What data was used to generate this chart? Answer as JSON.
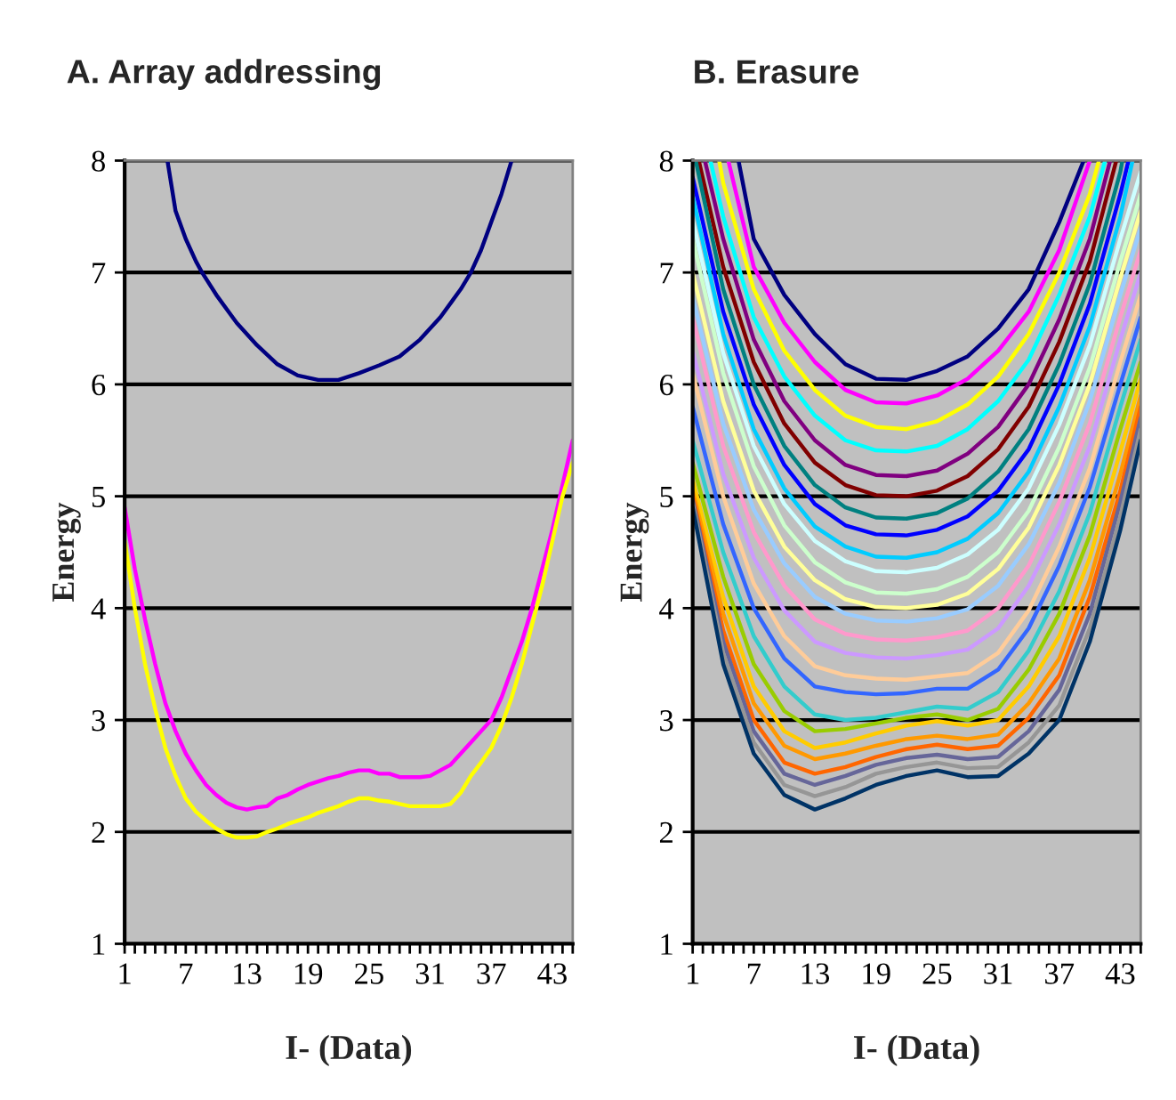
{
  "chart_data": [
    {
      "type": "line",
      "title": "A. Array addressing",
      "xlabel": "I- (Data)",
      "ylabel": "Energy",
      "xlim": [
        1,
        45
      ],
      "ylim": [
        1,
        8
      ],
      "yticks": [
        1,
        2,
        3,
        4,
        5,
        6,
        7,
        8
      ],
      "xticks": [
        1,
        {
          "value": 2,
          "label": null
        },
        {
          "value": 3,
          "label": null
        },
        {
          "value": 4,
          "label": null
        },
        {
          "value": 5,
          "label": null
        },
        {
          "value": 6,
          "label": null
        },
        7,
        {
          "value": 8,
          "label": null
        },
        {
          "value": 9,
          "label": null
        },
        {
          "value": 10,
          "label": null
        },
        {
          "value": 11,
          "label": null
        },
        {
          "value": 12,
          "label": null
        },
        13,
        {
          "value": 14,
          "label": null
        },
        {
          "value": 15,
          "label": null
        },
        {
          "value": 16,
          "label": null
        },
        {
          "value": 17,
          "label": null
        },
        {
          "value": 18,
          "label": null
        },
        19,
        {
          "value": 20,
          "label": null
        },
        {
          "value": 21,
          "label": null
        },
        {
          "value": 22,
          "label": null
        },
        {
          "value": 23,
          "label": null
        },
        {
          "value": 24,
          "label": null
        },
        25,
        {
          "value": 26,
          "label": null
        },
        {
          "value": 27,
          "label": null
        },
        {
          "value": 28,
          "label": null
        },
        {
          "value": 29,
          "label": null
        },
        {
          "value": 30,
          "label": null
        },
        31,
        {
          "value": 32,
          "label": null
        },
        {
          "value": 33,
          "label": null
        },
        {
          "value": 34,
          "label": null
        },
        {
          "value": 35,
          "label": null
        },
        {
          "value": 36,
          "label": null
        },
        37,
        {
          "value": 38,
          "label": null
        },
        {
          "value": 39,
          "label": null
        },
        {
          "value": 40,
          "label": null
        },
        {
          "value": 41,
          "label": null
        },
        {
          "value": 42,
          "label": null
        },
        43,
        {
          "value": 44,
          "label": null
        },
        {
          "value": 45,
          "label": null
        }
      ],
      "grid": "y",
      "series": [
        {
          "color": "#000080",
          "x": [
            5.2,
            6,
            7,
            8,
            8.6,
            10,
            12,
            14,
            16,
            18,
            20,
            22,
            24,
            26,
            28,
            30,
            32,
            34,
            35,
            36,
            37,
            38,
            39
          ],
          "values": [
            8,
            7.55,
            7.3,
            7.1,
            7,
            6.8,
            6.55,
            6.35,
            6.18,
            6.08,
            6.04,
            6.04,
            6.1,
            6.17,
            6.25,
            6.4,
            6.6,
            6.85,
            7,
            7.2,
            7.45,
            7.7,
            8
          ]
        },
        {
          "color": "#ff00ff",
          "x": [
            1,
            2,
            3,
            4,
            5,
            6,
            7,
            8,
            9,
            10,
            11,
            12,
            13,
            14,
            15,
            16,
            17,
            18,
            19,
            20,
            21,
            22,
            23,
            24,
            25,
            26,
            27,
            28,
            29,
            30,
            31,
            32,
            33,
            34,
            35,
            36,
            37,
            38,
            39,
            40,
            41,
            42,
            43,
            44,
            45
          ],
          "values": [
            4.9,
            4.35,
            3.9,
            3.5,
            3.15,
            2.9,
            2.7,
            2.55,
            2.42,
            2.33,
            2.26,
            2.22,
            2.2,
            2.22,
            2.23,
            2.3,
            2.33,
            2.38,
            2.42,
            2.45,
            2.48,
            2.5,
            2.53,
            2.55,
            2.55,
            2.52,
            2.52,
            2.49,
            2.49,
            2.49,
            2.5,
            2.55,
            2.6,
            2.7,
            2.8,
            2.9,
            3.0,
            3.2,
            3.45,
            3.7,
            4.0,
            4.35,
            4.7,
            5.1,
            5.5
          ]
        },
        {
          "color": "#ffff00",
          "x": [
            1,
            2,
            3,
            4,
            5,
            6,
            7,
            8,
            9,
            10,
            11,
            12,
            13,
            14,
            15,
            16,
            17,
            18,
            19,
            20,
            21,
            22,
            23,
            24,
            25,
            26,
            27,
            28,
            29,
            30,
            31,
            32,
            33,
            34,
            35,
            36,
            37,
            38,
            39,
            40,
            41,
            42,
            43,
            44,
            45
          ],
          "values": [
            4.6,
            4.0,
            3.5,
            3.1,
            2.75,
            2.5,
            2.3,
            2.18,
            2.1,
            2.03,
            1.98,
            1.95,
            1.95,
            1.96,
            2.0,
            2.03,
            2.07,
            2.1,
            2.13,
            2.17,
            2.2,
            2.23,
            2.27,
            2.3,
            2.3,
            2.28,
            2.27,
            2.25,
            2.23,
            2.23,
            2.23,
            2.23,
            2.25,
            2.35,
            2.5,
            2.62,
            2.75,
            2.95,
            3.2,
            3.5,
            3.85,
            4.2,
            4.6,
            5.0,
            5.3
          ]
        }
      ]
    },
    {
      "type": "line",
      "title": "B. Erasure",
      "xlabel": "I- (Data)",
      "ylabel": "Energy",
      "xlim": [
        1,
        45
      ],
      "ylim": [
        1,
        8
      ],
      "yticks": [
        1,
        2,
        3,
        4,
        5,
        6,
        7,
        8
      ],
      "xticks": [
        1,
        {
          "value": 2,
          "label": null
        },
        {
          "value": 3,
          "label": null
        },
        {
          "value": 4,
          "label": null
        },
        {
          "value": 5,
          "label": null
        },
        {
          "value": 6,
          "label": null
        },
        7,
        {
          "value": 8,
          "label": null
        },
        {
          "value": 9,
          "label": null
        },
        {
          "value": 10,
          "label": null
        },
        {
          "value": 11,
          "label": null
        },
        {
          "value": 12,
          "label": null
        },
        13,
        {
          "value": 14,
          "label": null
        },
        {
          "value": 15,
          "label": null
        },
        {
          "value": 16,
          "label": null
        },
        {
          "value": 17,
          "label": null
        },
        {
          "value": 18,
          "label": null
        },
        19,
        {
          "value": 20,
          "label": null
        },
        {
          "value": 21,
          "label": null
        },
        {
          "value": 22,
          "label": null
        },
        {
          "value": 23,
          "label": null
        },
        {
          "value": 24,
          "label": null
        },
        25,
        {
          "value": 26,
          "label": null
        },
        {
          "value": 27,
          "label": null
        },
        {
          "value": 28,
          "label": null
        },
        {
          "value": 29,
          "label": null
        },
        {
          "value": 30,
          "label": null
        },
        31,
        {
          "value": 32,
          "label": null
        },
        {
          "value": 33,
          "label": null
        },
        {
          "value": 34,
          "label": null
        },
        {
          "value": 35,
          "label": null
        },
        {
          "value": 36,
          "label": null
        },
        37,
        {
          "value": 38,
          "label": null
        },
        {
          "value": 39,
          "label": null
        },
        {
          "value": 40,
          "label": null
        },
        {
          "value": 41,
          "label": null
        },
        {
          "value": 42,
          "label": null
        },
        43,
        {
          "value": 44,
          "label": null
        },
        {
          "value": 45,
          "label": null
        }
      ],
      "grid": "y",
      "series": [
        {
          "color": "#000080",
          "x": [
            5.5,
            7,
            10,
            13,
            16,
            19,
            22,
            25,
            28,
            31,
            34,
            37,
            39.4
          ],
          "values": [
            8,
            7.3,
            6.8,
            6.45,
            6.18,
            6.05,
            6.04,
            6.12,
            6.25,
            6.5,
            6.85,
            7.45,
            8
          ]
        },
        {
          "color": "#ff00ff",
          "x": [
            4.5,
            7,
            10,
            13,
            16,
            19,
            22,
            25,
            28,
            31,
            34,
            37,
            40
          ],
          "values": [
            8,
            7.05,
            6.55,
            6.2,
            5.95,
            5.84,
            5.83,
            5.9,
            6.05,
            6.3,
            6.65,
            7.2,
            8
          ]
        },
        {
          "color": "#ffff00",
          "x": [
            3.6,
            4,
            7,
            10,
            13,
            16,
            19,
            22,
            25,
            28,
            31,
            34,
            37,
            40,
            40.9
          ],
          "values": [
            8,
            7.8,
            6.85,
            6.3,
            5.95,
            5.72,
            5.62,
            5.6,
            5.67,
            5.82,
            6.07,
            6.45,
            7.0,
            7.7,
            8
          ]
        },
        {
          "color": "#00ffff",
          "x": [
            2.75,
            4,
            7,
            10,
            13,
            16,
            19,
            22,
            25,
            28,
            31,
            34,
            37,
            40,
            41.5
          ],
          "values": [
            8,
            7.5,
            6.6,
            6.07,
            5.72,
            5.5,
            5.41,
            5.4,
            5.45,
            5.6,
            5.85,
            6.22,
            6.8,
            7.5,
            8
          ]
        },
        {
          "color": "#800080",
          "x": [
            2.2,
            4,
            7,
            10,
            13,
            16,
            19,
            22,
            25,
            28,
            31,
            34,
            37,
            40,
            42
          ],
          "values": [
            8,
            7.3,
            6.4,
            5.85,
            5.5,
            5.28,
            5.19,
            5.18,
            5.23,
            5.38,
            5.62,
            6.0,
            6.58,
            7.3,
            8
          ]
        },
        {
          "color": "#800000",
          "x": [
            1.6,
            4,
            7,
            10,
            13,
            16,
            19,
            22,
            25,
            28,
            31,
            34,
            37,
            40,
            42.6
          ],
          "values": [
            8,
            7.05,
            6.2,
            5.65,
            5.3,
            5.1,
            5.01,
            5.0,
            5.05,
            5.18,
            5.42,
            5.8,
            6.38,
            7.1,
            8
          ]
        },
        {
          "color": "#008080",
          "x": [
            1.3,
            4,
            7,
            10,
            13,
            16,
            19,
            22,
            25,
            28,
            31,
            34,
            37,
            40,
            43,
            43.2
          ],
          "values": [
            8,
            6.85,
            6.0,
            5.45,
            5.1,
            4.9,
            4.81,
            4.8,
            4.85,
            4.98,
            5.22,
            5.6,
            6.18,
            6.9,
            7.9,
            8
          ]
        },
        {
          "color": "#0000ff",
          "x": [
            1,
            4,
            7,
            10,
            13,
            16,
            19,
            22,
            25,
            28,
            31,
            34,
            37,
            40,
            43,
            43.8
          ],
          "values": [
            7.85,
            6.65,
            5.82,
            5.28,
            4.93,
            4.74,
            4.66,
            4.65,
            4.7,
            4.82,
            5.05,
            5.42,
            6.0,
            6.72,
            7.7,
            8
          ]
        },
        {
          "color": "#00ccff",
          "x": [
            1,
            4,
            7,
            10,
            13,
            16,
            19,
            22,
            25,
            28,
            31,
            34,
            37,
            40,
            43,
            44.2
          ],
          "values": [
            7.68,
            6.45,
            5.6,
            5.07,
            4.73,
            4.55,
            4.46,
            4.45,
            4.5,
            4.62,
            4.85,
            5.22,
            5.8,
            6.52,
            7.5,
            8
          ]
        },
        {
          "color": "#ccffff",
          "x": [
            1,
            4,
            7,
            10,
            13,
            16,
            19,
            22,
            25,
            28,
            31,
            34,
            37,
            40,
            43,
            45
          ],
          "values": [
            7.47,
            6.28,
            5.45,
            4.93,
            4.6,
            4.42,
            4.33,
            4.32,
            4.36,
            4.48,
            4.7,
            5.07,
            5.64,
            6.35,
            7.3,
            7.9
          ]
        },
        {
          "color": "#ccffcc",
          "x": [
            1,
            4,
            7,
            10,
            13,
            16,
            19,
            22,
            25,
            28,
            31,
            34,
            37,
            40,
            43,
            45
          ],
          "values": [
            7.3,
            6.1,
            5.27,
            4.74,
            4.41,
            4.23,
            4.14,
            4.13,
            4.17,
            4.28,
            4.5,
            4.87,
            5.44,
            6.15,
            7.1,
            7.7
          ]
        },
        {
          "color": "#ffff99",
          "x": [
            1,
            4,
            7,
            10,
            13,
            16,
            19,
            22,
            25,
            28,
            31,
            34,
            37,
            40,
            43,
            45
          ],
          "values": [
            7.0,
            5.85,
            5.05,
            4.55,
            4.25,
            4.08,
            4.01,
            4.0,
            4.03,
            4.13,
            4.35,
            4.72,
            5.28,
            6.0,
            6.95,
            7.55
          ]
        },
        {
          "color": "#99ccff",
          "x": [
            1,
            4,
            7,
            10,
            13,
            16,
            19,
            22,
            25,
            28,
            31,
            34,
            37,
            40,
            43,
            45
          ],
          "values": [
            6.78,
            5.65,
            4.88,
            4.4,
            4.1,
            3.95,
            3.89,
            3.88,
            3.91,
            3.99,
            4.2,
            4.57,
            5.12,
            5.85,
            6.8,
            7.4
          ]
        },
        {
          "color": "#ff99cc",
          "x": [
            1,
            4,
            7,
            10,
            13,
            16,
            19,
            22,
            25,
            28,
            31,
            34,
            37,
            40,
            43,
            45
          ],
          "values": [
            6.6,
            5.45,
            4.68,
            4.2,
            3.9,
            3.77,
            3.72,
            3.71,
            3.74,
            3.8,
            4.0,
            4.38,
            4.95,
            5.65,
            6.6,
            7.2
          ]
        },
        {
          "color": "#cc99ff",
          "x": [
            1,
            4,
            7,
            10,
            13,
            16,
            19,
            22,
            25,
            28,
            31,
            34,
            37,
            40,
            43,
            45
          ],
          "values": [
            6.3,
            5.2,
            4.45,
            3.98,
            3.7,
            3.6,
            3.56,
            3.55,
            3.58,
            3.63,
            3.82,
            4.2,
            4.75,
            5.45,
            6.4,
            7.0
          ]
        },
        {
          "color": "#ffcc99",
          "x": [
            1,
            4,
            7,
            10,
            13,
            16,
            19,
            22,
            25,
            28,
            31,
            34,
            37,
            40,
            43,
            45
          ],
          "values": [
            6.1,
            5.0,
            4.22,
            3.75,
            3.48,
            3.4,
            3.37,
            3.36,
            3.39,
            3.42,
            3.6,
            3.98,
            4.55,
            5.25,
            6.2,
            6.8
          ]
        },
        {
          "color": "#3366ff",
          "x": [
            1,
            4,
            7,
            10,
            13,
            16,
            19,
            22,
            25,
            28,
            31,
            34,
            37,
            40,
            43,
            45
          ],
          "values": [
            5.8,
            4.75,
            4.0,
            3.55,
            3.3,
            3.25,
            3.23,
            3.24,
            3.28,
            3.28,
            3.45,
            3.82,
            4.38,
            5.08,
            6.0,
            6.6
          ]
        },
        {
          "color": "#33cccc",
          "x": [
            1,
            4,
            7,
            10,
            13,
            16,
            19,
            22,
            25,
            28,
            31,
            34,
            37,
            40,
            43,
            45
          ],
          "values": [
            5.5,
            4.5,
            3.75,
            3.3,
            3.05,
            3.0,
            3.02,
            3.07,
            3.12,
            3.1,
            3.25,
            3.62,
            4.15,
            4.85,
            5.8,
            6.4
          ]
        },
        {
          "color": "#99cc00",
          "x": [
            1,
            4,
            7,
            10,
            13,
            16,
            19,
            22,
            25,
            28,
            31,
            34,
            37,
            40,
            43,
            45
          ],
          "values": [
            5.3,
            4.28,
            3.5,
            3.08,
            2.9,
            2.92,
            2.97,
            3.02,
            3.05,
            3.0,
            3.1,
            3.45,
            3.95,
            4.65,
            5.6,
            6.2
          ]
        },
        {
          "color": "#ffcc00",
          "x": [
            1,
            4,
            7,
            10,
            13,
            16,
            19,
            22,
            25,
            28,
            31,
            34,
            37,
            40,
            43,
            45
          ],
          "values": [
            5.15,
            4.1,
            3.3,
            2.9,
            2.75,
            2.8,
            2.88,
            2.95,
            2.99,
            2.95,
            3.0,
            3.3,
            3.75,
            4.45,
            5.4,
            6.05
          ]
        },
        {
          "color": "#ff9900",
          "x": [
            1,
            4,
            7,
            10,
            13,
            16,
            19,
            22,
            25,
            28,
            31,
            34,
            37,
            40,
            43,
            45
          ],
          "values": [
            5.05,
            3.95,
            3.15,
            2.77,
            2.65,
            2.7,
            2.77,
            2.83,
            2.86,
            2.83,
            2.87,
            3.15,
            3.55,
            4.25,
            5.2,
            5.9
          ]
        },
        {
          "color": "#ff6600",
          "x": [
            1,
            4,
            7,
            10,
            13,
            16,
            19,
            22,
            25,
            28,
            31,
            34,
            37,
            40,
            43,
            45
          ],
          "values": [
            5.0,
            3.8,
            3.0,
            2.62,
            2.52,
            2.58,
            2.67,
            2.74,
            2.78,
            2.74,
            2.77,
            3.02,
            3.4,
            4.1,
            5.05,
            5.8
          ]
        },
        {
          "color": "#666699",
          "x": [
            1,
            4,
            7,
            10,
            13,
            16,
            19,
            22,
            25,
            28,
            31,
            34,
            37,
            40,
            43,
            45
          ],
          "values": [
            4.97,
            3.7,
            2.9,
            2.52,
            2.42,
            2.5,
            2.6,
            2.66,
            2.69,
            2.65,
            2.67,
            2.9,
            3.27,
            3.95,
            4.95,
            5.7
          ]
        },
        {
          "color": "#969696",
          "x": [
            1,
            4,
            7,
            10,
            13,
            16,
            19,
            22,
            25,
            28,
            31,
            34,
            37,
            40,
            43,
            45
          ],
          "values": [
            4.94,
            3.6,
            2.8,
            2.42,
            2.32,
            2.4,
            2.52,
            2.58,
            2.62,
            2.57,
            2.58,
            2.8,
            3.13,
            3.82,
            4.82,
            5.6
          ]
        },
        {
          "color": "#003366",
          "x": [
            1,
            4,
            7,
            10,
            13,
            16,
            19,
            22,
            25,
            28,
            31,
            34,
            37,
            40,
            43,
            45
          ],
          "values": [
            4.9,
            3.5,
            2.7,
            2.33,
            2.2,
            2.3,
            2.42,
            2.5,
            2.55,
            2.49,
            2.5,
            2.7,
            3.0,
            3.7,
            4.7,
            5.5
          ]
        }
      ]
    }
  ]
}
